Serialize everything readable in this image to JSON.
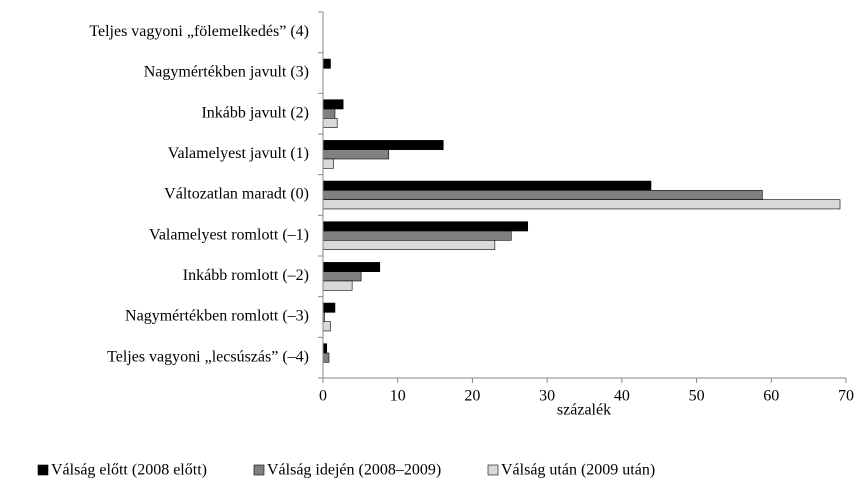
{
  "chart_data": {
    "type": "hbar",
    "categories": [
      "Teljes vagyoni „fölemelkedés” (4)",
      "Nagymértékben javult (3)",
      "Inkább javult (2)",
      "Valamelyest javult (1)",
      "Változatlan maradt (0)",
      "Valamelyest romlott (–1)",
      "Inkább romlott (–2)",
      "Nagymértékben romlott (–3)",
      "Teljes vagyoni „lecsúszás” (–4)"
    ],
    "series": [
      {
        "name": "Válság előtt (2008 előtt)",
        "color": "#000000",
        "values": [
          0,
          1.0,
          2.7,
          16.1,
          43.9,
          27.4,
          7.6,
          1.6,
          0.5
        ]
      },
      {
        "name": "Válság idején (2008–2009)",
        "color": "#808080",
        "values": [
          0,
          0,
          1.6,
          8.8,
          58.8,
          25.2,
          5.1,
          0.2,
          0.8
        ]
      },
      {
        "name": "Válság után (2009 után)",
        "color": "#d9d9d9",
        "values": [
          0,
          0,
          1.9,
          1.4,
          69.2,
          23.0,
          3.9,
          1.0,
          0
        ]
      }
    ],
    "xlabel": "százalék",
    "xlim": [
      0,
      70
    ],
    "xticks": [
      0,
      10,
      20,
      30,
      40,
      50,
      60,
      70
    ],
    "grid": false
  }
}
